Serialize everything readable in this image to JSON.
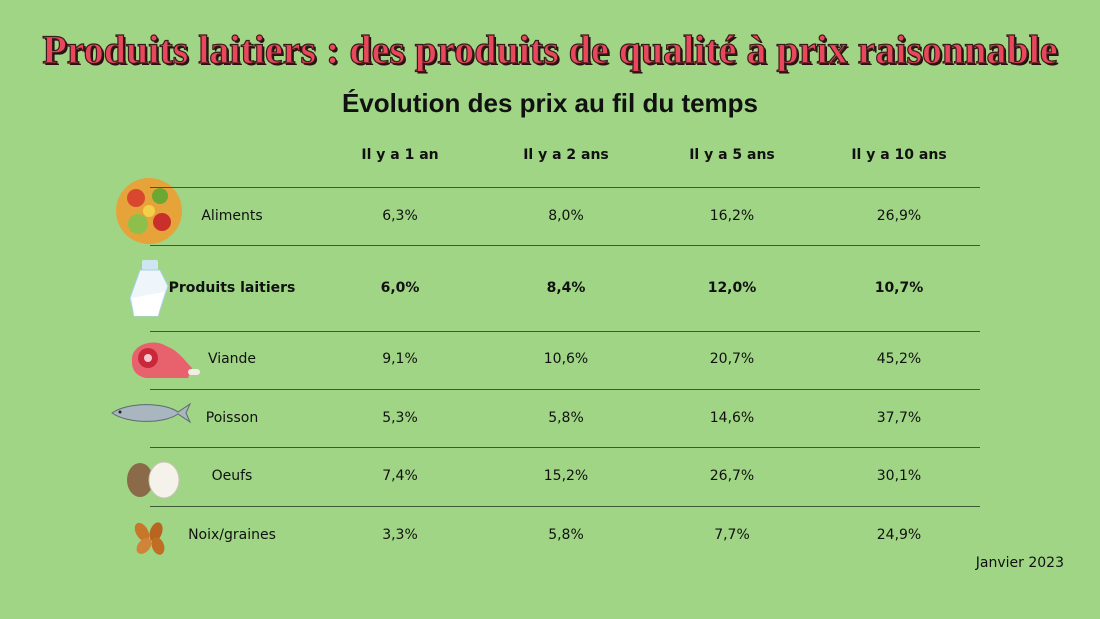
{
  "header": {
    "title": "Produits laitiers : des produits de qualité à prix raisonnable",
    "subtitle": "Évolution des prix au fil du temps"
  },
  "table": {
    "columns": [
      "Il y a 1 an",
      "Il y a 2 ans",
      "Il y a 5 ans",
      "Il y a 10 ans"
    ],
    "rows": [
      [
        "Aliments",
        "6,3%",
        "8,0%",
        "16,2%",
        "26,9%"
      ],
      [
        "Produits laitiers",
        "6,0%",
        "8,4%",
        "12,0%",
        "10,7%"
      ],
      [
        "Viande",
        "9,1%",
        "10,6%",
        "20,7%",
        "45,2%"
      ],
      [
        "Poisson",
        "5,3%",
        "5,8%",
        "14,6%",
        "37,7%"
      ],
      [
        "Oeufs",
        "7,4%",
        "15,2%",
        "26,7%",
        "30,1%"
      ],
      [
        "Noix/graines",
        "3,3%",
        "5,8%",
        "7,7%",
        "24,9%"
      ]
    ]
  },
  "footnote": "Janvier 2023"
}
